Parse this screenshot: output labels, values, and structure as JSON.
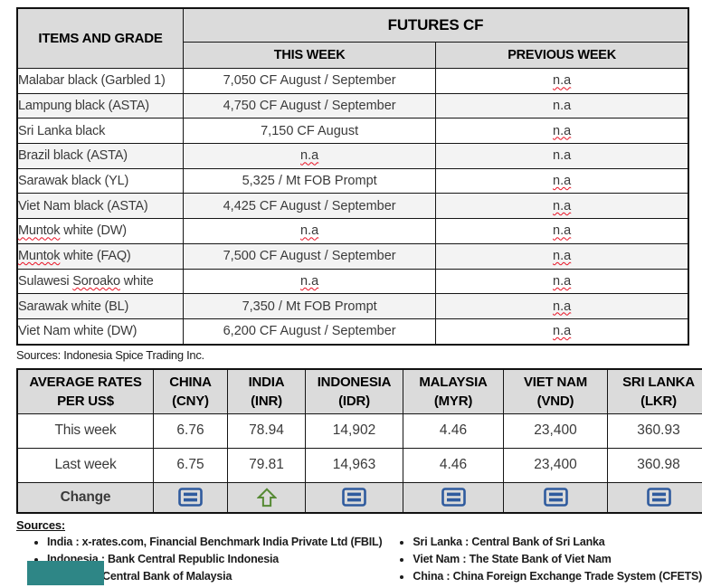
{
  "futures": {
    "items_header": "ITEMS AND GRADE",
    "group_header": "FUTURES CF",
    "this_week_header": "THIS WEEK",
    "previous_week_header": "PREVIOUS WEEK",
    "rows": [
      {
        "item": "Malabar black (Garbled 1)",
        "this_week": "7,050 CF August / September",
        "this_sq": false,
        "prev_week": "n.a",
        "prev_sq": true
      },
      {
        "item": "Lampung black (ASTA)",
        "this_week": "4,750 CF August / September",
        "this_sq": false,
        "prev_week": "n.a",
        "prev_sq": false
      },
      {
        "item": "Sri Lanka black",
        "this_week": "7,150 CF August",
        "this_sq": false,
        "prev_week": "n.a",
        "prev_sq": true
      },
      {
        "item": "Brazil black (ASTA)",
        "this_week": "n.a",
        "this_sq": true,
        "prev_week": "n.a",
        "prev_sq": false
      },
      {
        "item": "Sarawak black (YL)",
        "this_week": "5,325 / Mt FOB Prompt",
        "this_sq": false,
        "prev_week": "n.a",
        "prev_sq": true
      },
      {
        "item": "Viet Nam black (ASTA)",
        "this_week": "4,425 CF August / September",
        "this_sq": false,
        "prev_week": "n.a",
        "prev_sq": true
      },
      {
        "item": "Muntok white (DW)",
        "this_week": "n.a",
        "this_sq": true,
        "prev_week": "n.a",
        "prev_sq": true
      },
      {
        "item": "Muntok white (FAQ)",
        "this_week": "7,500 CF August / September",
        "this_sq": false,
        "prev_week": "n.a",
        "prev_sq": true
      },
      {
        "item": "Sulawesi Soroako white",
        "this_week": "n.a",
        "this_sq": true,
        "prev_week": "n.a",
        "prev_sq": true
      },
      {
        "item": "Sarawak  white (BL)",
        "this_week": "7,350 / Mt FOB Prompt",
        "this_sq": false,
        "prev_week": "n.a",
        "prev_sq": true
      },
      {
        "item": "Viet Nam white (DW)",
        "this_week": "6,200 CF August / September",
        "this_sq": false,
        "prev_week": "n.a",
        "prev_sq": true
      }
    ],
    "source_note": "Sources: Indonesia Spice Trading Inc."
  },
  "rates": {
    "row_header_line1": "AVERAGE RATES",
    "row_header_line2": "PER US$",
    "columns": [
      {
        "name": "CHINA",
        "code": "(CNY)"
      },
      {
        "name": "INDIA",
        "code": "(INR)"
      },
      {
        "name": "INDONESIA",
        "code": "(IDR)"
      },
      {
        "name": "MALAYSIA",
        "code": "(MYR)"
      },
      {
        "name": "VIET NAM",
        "code": "(VND)"
      },
      {
        "name": "SRI LANKA",
        "code": "(LKR)"
      }
    ],
    "this_week": {
      "label": "This week",
      "values": [
        "6.76",
        "78.94",
        "14,902",
        "4.46",
        "23,400",
        "360.93"
      ]
    },
    "last_week": {
      "label": "Last week",
      "values": [
        "6.75",
        "79.81",
        "14,963",
        "4.46",
        "23,400",
        "360.98"
      ]
    },
    "change": {
      "label": "Change",
      "icons": [
        "equal",
        "up",
        "equal",
        "equal",
        "equal",
        "equal"
      ]
    }
  },
  "sources": {
    "title": "Sources:",
    "left": [
      "India : x-rates.com, Financial Benchmark India Private Ltd (FBIL)",
      "Indonesia : Bank Central Republic Indonesia",
      "Malaysia : Central Bank of Malaysia"
    ],
    "right": [
      "Sri Lanka : Central Bank of Sri Lanka",
      "Viet Nam : The State Bank of Viet Nam",
      "China : China Foreign Exchange Trade System (CFETS)"
    ]
  },
  "spellcheck_words": [
    "Muntok",
    "Soroako"
  ],
  "colors": {
    "header_fill": "#DBDBDB",
    "alt_row_fill": "#F3F3F3",
    "equal_icon_blue": "#2F5B9E",
    "up_icon_green": "#568A34",
    "squiggle_red": "#E81123",
    "teal_block": "#2E8686"
  }
}
